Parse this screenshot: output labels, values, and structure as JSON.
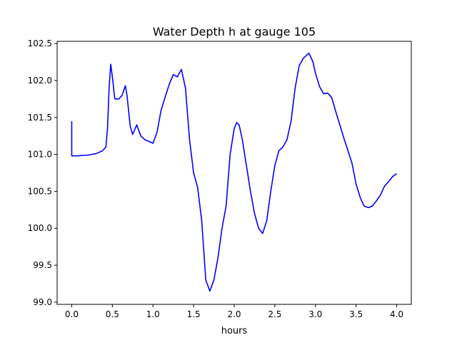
{
  "chart_data": {
    "type": "line",
    "title": "Water Depth h at gauge 105",
    "xlabel": "hours",
    "ylabel": "",
    "xlim": [
      -0.18,
      4.18
    ],
    "ylim": [
      98.97,
      102.53
    ],
    "xticks": [
      0.0,
      0.5,
      1.0,
      1.5,
      2.0,
      2.5,
      3.0,
      3.5,
      4.0
    ],
    "xtick_labels": [
      "0.0",
      "0.5",
      "1.0",
      "1.5",
      "2.0",
      "2.5",
      "3.0",
      "3.5",
      "4.0"
    ],
    "yticks": [
      99.0,
      99.5,
      100.0,
      100.5,
      101.0,
      101.5,
      102.0,
      102.5
    ],
    "ytick_labels": [
      "99.0",
      "99.5",
      "100.0",
      "100.5",
      "101.0",
      "101.5",
      "102.0",
      "102.5"
    ],
    "grid": false,
    "series": [
      {
        "color": "#0000ff",
        "x": [
          0.0,
          0.0,
          0.05,
          0.2,
          0.3,
          0.38,
          0.42,
          0.44,
          0.46,
          0.48,
          0.5,
          0.53,
          0.58,
          0.62,
          0.66,
          0.68,
          0.72,
          0.75,
          0.8,
          0.85,
          0.9,
          1.0,
          1.05,
          1.1,
          1.2,
          1.25,
          1.3,
          1.35,
          1.4,
          1.45,
          1.5,
          1.55,
          1.6,
          1.65,
          1.7,
          1.75,
          1.8,
          1.85,
          1.9,
          1.95,
          2.0,
          2.03,
          2.06,
          2.1,
          2.15,
          2.2,
          2.25,
          2.3,
          2.35,
          2.4,
          2.45,
          2.5,
          2.55,
          2.6,
          2.65,
          2.7,
          2.75,
          2.8,
          2.85,
          2.92,
          2.97,
          3.0,
          3.05,
          3.1,
          3.15,
          3.2,
          3.25,
          3.3,
          3.35,
          3.4,
          3.45,
          3.5,
          3.55,
          3.6,
          3.65,
          3.7,
          3.75,
          3.8,
          3.85,
          3.9,
          3.95,
          4.0
        ],
        "y": [
          101.45,
          100.98,
          100.98,
          100.99,
          101.01,
          101.05,
          101.1,
          101.35,
          101.9,
          102.22,
          102.05,
          101.75,
          101.75,
          101.8,
          101.93,
          101.8,
          101.38,
          101.27,
          101.4,
          101.25,
          101.2,
          101.15,
          101.3,
          101.6,
          101.95,
          102.08,
          102.05,
          102.15,
          101.9,
          101.2,
          100.75,
          100.55,
          100.1,
          99.3,
          99.15,
          99.3,
          99.6,
          100.0,
          100.3,
          101.0,
          101.35,
          101.43,
          101.4,
          101.2,
          100.85,
          100.5,
          100.2,
          100.0,
          99.93,
          100.1,
          100.5,
          100.85,
          101.05,
          101.1,
          101.2,
          101.45,
          101.9,
          102.2,
          102.3,
          102.37,
          102.25,
          102.1,
          101.92,
          101.82,
          101.83,
          101.77,
          101.58,
          101.4,
          101.22,
          101.05,
          100.88,
          100.6,
          100.42,
          100.3,
          100.28,
          100.3,
          100.37,
          100.45,
          100.57,
          100.63,
          100.7,
          100.74
        ]
      }
    ]
  }
}
